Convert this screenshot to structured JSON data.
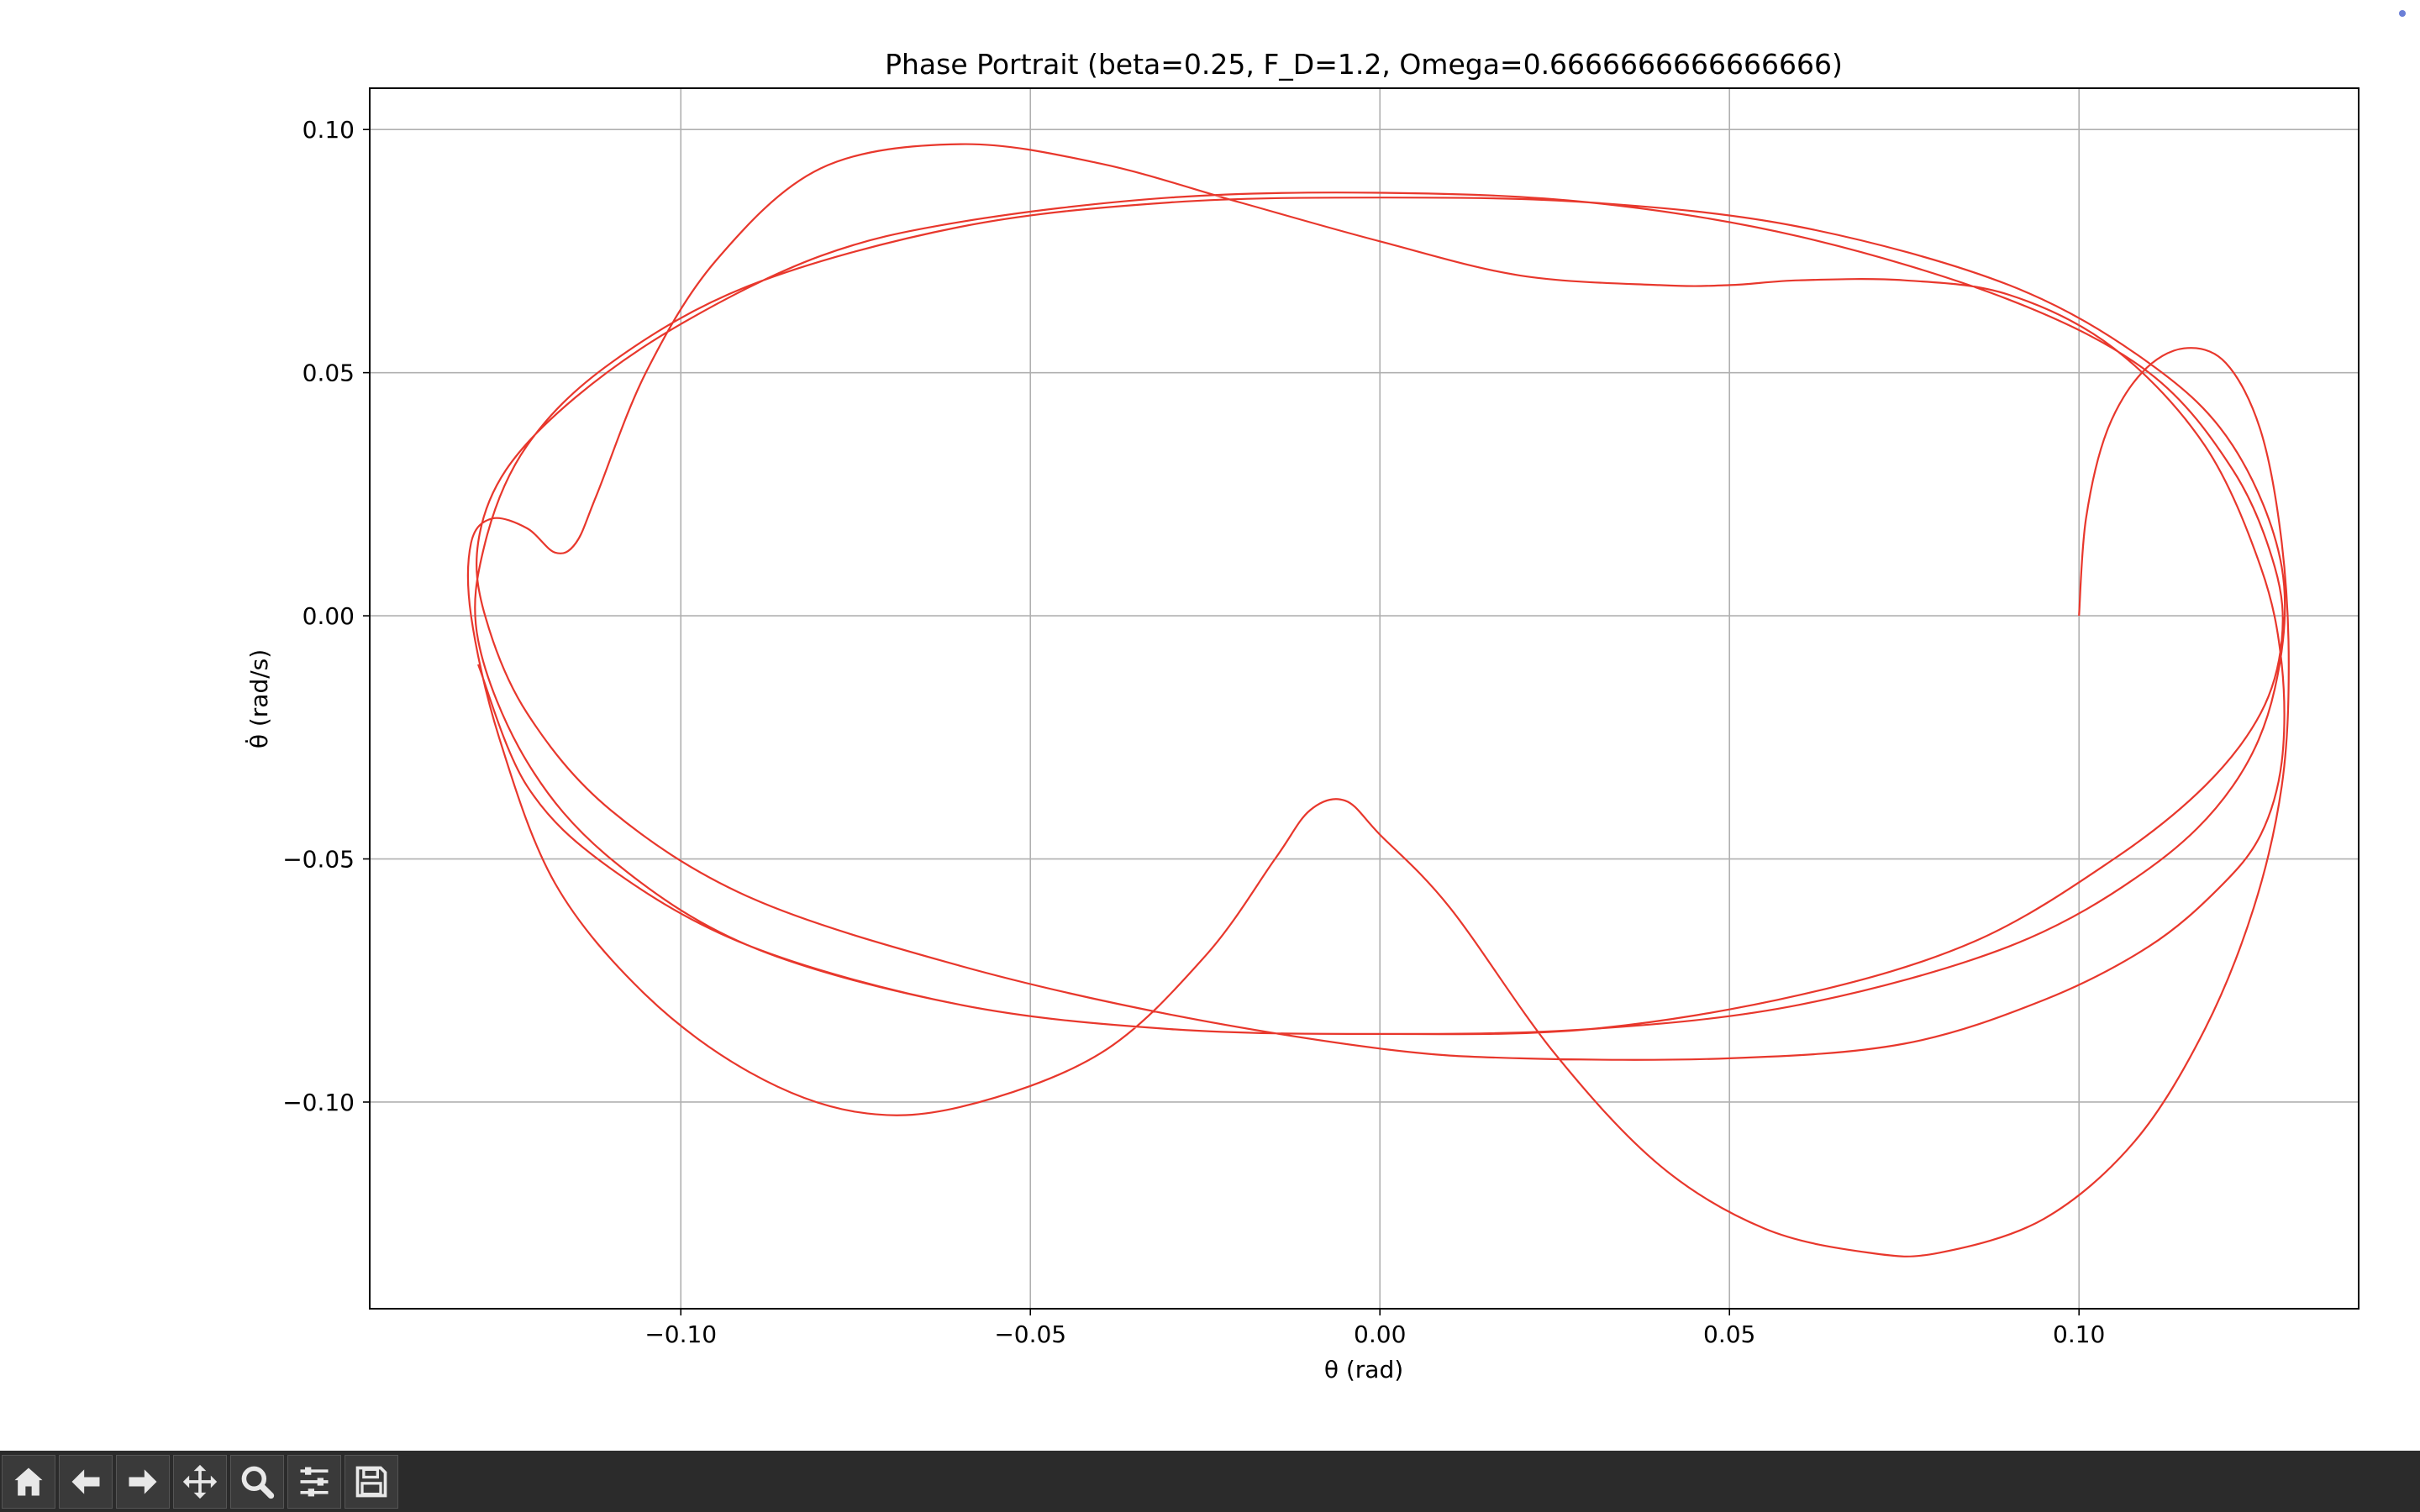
{
  "window": {
    "status_indicator": "blue-dot"
  },
  "toolbar": {
    "buttons": [
      {
        "name": "home",
        "icon": "home-icon"
      },
      {
        "name": "back",
        "icon": "arrow-left-icon"
      },
      {
        "name": "forward",
        "icon": "arrow-right-icon"
      },
      {
        "name": "pan",
        "icon": "move-icon"
      },
      {
        "name": "zoom",
        "icon": "magnifier-icon"
      },
      {
        "name": "configure-subplots",
        "icon": "sliders-icon"
      },
      {
        "name": "save",
        "icon": "floppy-disk-icon"
      }
    ]
  },
  "chart_data": {
    "type": "line",
    "title": "Phase Portrait (beta=0.25, F_D=1.2, Omega=0.6666666666666666)",
    "xlabel": "θ (rad)",
    "ylabel": "θ̇ (rad/s)",
    "xlim": [
      -0.1445,
      0.14
    ],
    "ylim": [
      -0.1425,
      0.1085
    ],
    "xticks": [
      -0.1,
      -0.05,
      0.0,
      0.05,
      0.1
    ],
    "xtick_labels": [
      "−0.10",
      "−0.05",
      "0.00",
      "0.05",
      "0.10"
    ],
    "yticks": [
      0.1,
      0.05,
      0.0,
      -0.05,
      -0.1
    ],
    "ytick_labels": [
      "0.10",
      "0.05",
      "0.00",
      "−0.05",
      "−0.10"
    ],
    "grid": true,
    "line_color": "#e8372c",
    "series": [
      {
        "x": [
          0.1,
          0.101,
          0.104,
          0.109,
          0.115,
          0.121,
          0.126,
          0.129,
          0.13,
          0.129,
          0.125,
          0.118,
          0.108,
          0.095,
          0.08,
          0.07,
          0.055,
          0.04,
          0.025,
          0.01,
          0.0,
          -0.005,
          -0.01,
          -0.015,
          -0.025,
          -0.04,
          -0.06,
          -0.075,
          -0.09,
          -0.105,
          -0.118,
          -0.126,
          -0.13,
          -0.13,
          -0.127,
          -0.122,
          -0.118,
          -0.115,
          -0.112,
          -0.105,
          -0.095,
          -0.08,
          -0.06,
          -0.04,
          -0.02,
          0.0,
          0.02,
          0.04,
          0.05,
          0.06,
          0.075,
          0.09,
          0.105,
          0.118,
          0.126,
          0.129,
          0.129,
          0.126,
          0.12,
          0.11,
          0.095,
          0.075,
          0.05,
          0.02,
          0.0,
          -0.03,
          -0.06,
          -0.09,
          -0.11,
          -0.122,
          -0.128,
          -0.129,
          -0.125,
          -0.115,
          -0.1,
          -0.08,
          -0.06,
          -0.03,
          0.0,
          0.03,
          0.06,
          0.09,
          0.11,
          0.122,
          0.128,
          0.129,
          0.126,
          0.118,
          0.105,
          0.085,
          0.06,
          0.03,
          0.0,
          -0.03,
          -0.06,
          -0.09,
          -0.11,
          -0.122,
          -0.129,
          -0.128,
          -0.122,
          -0.11,
          -0.09,
          -0.06,
          -0.03,
          0.0,
          0.03,
          0.06,
          0.09,
          0.11,
          0.122,
          0.129,
          0.128,
          0.122,
          0.11,
          0.09,
          0.06,
          0.03,
          0.0,
          -0.03,
          -0.06,
          -0.09,
          -0.11,
          -0.122,
          -0.129
        ],
        "y": [
          0.0,
          0.02,
          0.038,
          0.05,
          0.055,
          0.052,
          0.038,
          0.015,
          -0.01,
          -0.035,
          -0.06,
          -0.085,
          -0.108,
          -0.124,
          -0.131,
          -0.131,
          -0.126,
          -0.113,
          -0.09,
          -0.06,
          -0.045,
          -0.038,
          -0.04,
          -0.05,
          -0.07,
          -0.09,
          -0.101,
          -0.102,
          -0.094,
          -0.078,
          -0.055,
          -0.025,
          0.0,
          0.015,
          0.02,
          0.018,
          0.013,
          0.015,
          0.025,
          0.05,
          0.073,
          0.092,
          0.097,
          0.093,
          0.085,
          0.077,
          0.07,
          0.068,
          0.068,
          0.069,
          0.069,
          0.066,
          0.055,
          0.035,
          0.01,
          -0.01,
          -0.03,
          -0.045,
          -0.056,
          -0.068,
          -0.079,
          -0.088,
          -0.091,
          -0.091,
          -0.089,
          -0.082,
          -0.072,
          -0.058,
          -0.04,
          -0.02,
          0.0,
          0.015,
          0.03,
          0.045,
          0.06,
          0.074,
          0.081,
          0.086,
          0.087,
          0.085,
          0.078,
          0.065,
          0.05,
          0.03,
          0.01,
          -0.005,
          -0.02,
          -0.035,
          -0.05,
          -0.067,
          -0.078,
          -0.085,
          -0.086,
          -0.085,
          -0.08,
          -0.068,
          -0.05,
          -0.03,
          -0.005,
          0.015,
          0.035,
          0.052,
          0.068,
          0.08,
          0.085,
          0.086,
          0.085,
          0.08,
          0.068,
          0.052,
          0.035,
          0.01,
          -0.015,
          -0.035,
          -0.052,
          -0.068,
          -0.08,
          -0.085,
          -0.086,
          -0.085,
          -0.08,
          -0.068,
          -0.052,
          -0.035,
          -0.01
        ]
      }
    ]
  }
}
